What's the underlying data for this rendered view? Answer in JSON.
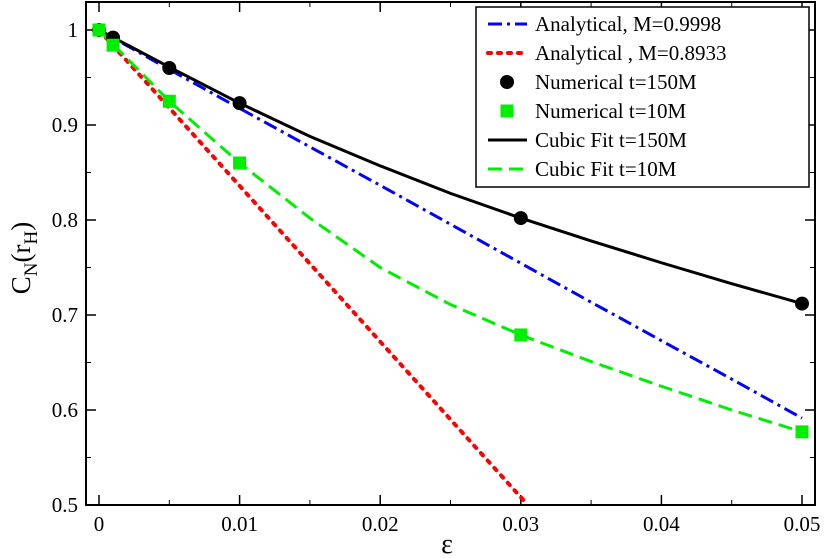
{
  "chart_data": {
    "type": "line",
    "xlabel": "ε",
    "ylabel": {
      "base": "C",
      "sub": "N",
      "open": "(r",
      "sub2": "H",
      "close": ")"
    },
    "xlim": [
      0,
      0.05
    ],
    "ylim": [
      0.5,
      1.0
    ],
    "x_ticks": [
      0,
      0.01,
      0.02,
      0.03,
      0.04,
      0.05
    ],
    "x_tick_labels": [
      "0",
      "0.01",
      "0.02",
      "0.03",
      "0.04",
      "0.05"
    ],
    "y_ticks": [
      0.5,
      0.6,
      0.7,
      0.8,
      0.9,
      1.0
    ],
    "y_tick_labels": [
      "0.5",
      "0.6",
      "0.7",
      "0.8",
      "0.9",
      "1"
    ],
    "legend_position": "top-right",
    "series": [
      {
        "name": "Analytical, M=0.9998",
        "style": "dashdot",
        "color": "#0000ff",
        "x": [
          0,
          0.005,
          0.01,
          0.015,
          0.02,
          0.025,
          0.03,
          0.035,
          0.04,
          0.045,
          0.05
        ],
        "y": [
          1.0,
          0.9585,
          0.9175,
          0.877,
          0.8365,
          0.7955,
          0.7545,
          0.7135,
          0.673,
          0.6325,
          0.5915
        ]
      },
      {
        "name": "Analytical , M=0.8933",
        "style": "dotted",
        "color": "#ff0000",
        "x": [
          0,
          0.005,
          0.01,
          0.015,
          0.02,
          0.025,
          0.0305
        ],
        "y": [
          1.0,
          0.918,
          0.836,
          0.754,
          0.672,
          0.59,
          0.5
        ]
      },
      {
        "name": "Numerical t=150M",
        "style": "circle",
        "color": "#000000",
        "x": [
          0,
          0.001,
          0.005,
          0.01,
          0.03,
          0.05
        ],
        "y": [
          1.0,
          0.992,
          0.96,
          0.923,
          0.802,
          0.712
        ]
      },
      {
        "name": "Numerical t=10M",
        "style": "square",
        "color": "#00ee00",
        "x": [
          0,
          0.001,
          0.005,
          0.01,
          0.03,
          0.05
        ],
        "y": [
          1.0,
          0.984,
          0.925,
          0.86,
          0.679,
          0.577
        ]
      },
      {
        "name": "Cubic Fit t=150M",
        "style": "solid",
        "color": "#000000",
        "x": [
          0,
          0.005,
          0.01,
          0.015,
          0.02,
          0.025,
          0.03,
          0.035,
          0.04,
          0.045,
          0.05
        ],
        "y": [
          1.0,
          0.961,
          0.923,
          0.888,
          0.857,
          0.828,
          0.802,
          0.778,
          0.755,
          0.733,
          0.712
        ]
      },
      {
        "name": "Cubic Fit t=10M",
        "style": "dashed",
        "color": "#00ee00",
        "x": [
          0,
          0.005,
          0.01,
          0.015,
          0.02,
          0.025,
          0.03,
          0.035,
          0.04,
          0.045,
          0.05
        ],
        "y": [
          1.0,
          0.925,
          0.86,
          0.802,
          0.75,
          0.711,
          0.679,
          0.651,
          0.625,
          0.6,
          0.577
        ]
      }
    ]
  }
}
